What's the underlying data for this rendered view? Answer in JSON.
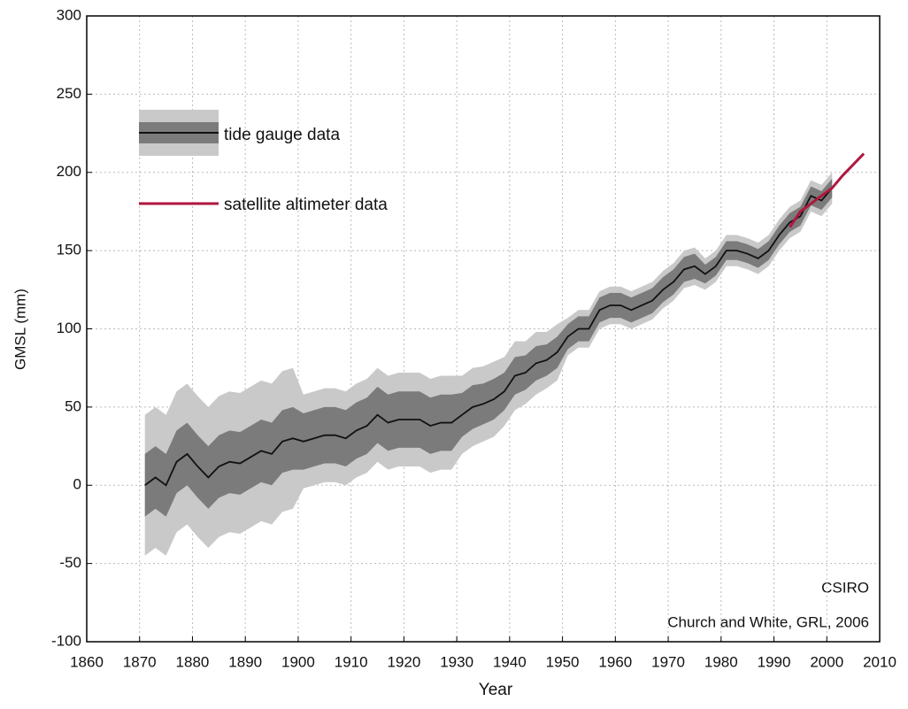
{
  "chart_data": {
    "type": "line",
    "xlabel": "Year",
    "ylabel": "GMSL (mm)",
    "annotations": [
      "CSIRO",
      "Church and White, GRL, 2006"
    ],
    "xlim": [
      1860,
      2010
    ],
    "xticks": [
      1860,
      1870,
      1880,
      1890,
      1900,
      1910,
      1920,
      1930,
      1940,
      1950,
      1960,
      1970,
      1980,
      1990,
      2000,
      2010
    ],
    "ylim": [
      -100,
      300
    ],
    "yticks": [
      -100,
      -50,
      0,
      50,
      100,
      150,
      200,
      250,
      300
    ],
    "grid": true,
    "legend": "upper left",
    "series": [
      {
        "name": "tide gauge data",
        "color": "#111111",
        "band_colors": [
          "#c9c9c9",
          "#7b7b7b"
        ],
        "x": [
          1871,
          1873,
          1875,
          1877,
          1879,
          1881,
          1883,
          1885,
          1887,
          1889,
          1891,
          1893,
          1895,
          1897,
          1899,
          1901,
          1903,
          1905,
          1907,
          1909,
          1911,
          1913,
          1915,
          1917,
          1919,
          1921,
          1923,
          1925,
          1927,
          1929,
          1931,
          1933,
          1935,
          1937,
          1939,
          1941,
          1943,
          1945,
          1947,
          1949,
          1951,
          1953,
          1955,
          1957,
          1959,
          1961,
          1963,
          1965,
          1967,
          1969,
          1971,
          1973,
          1975,
          1977,
          1979,
          1981,
          1983,
          1985,
          1987,
          1989,
          1991,
          1993,
          1995,
          1997,
          1999,
          2001
        ],
        "values": [
          0,
          5,
          0,
          15,
          20,
          12,
          5,
          12,
          15,
          14,
          18,
          22,
          20,
          28,
          30,
          28,
          30,
          32,
          32,
          30,
          35,
          38,
          45,
          40,
          42,
          42,
          42,
          38,
          40,
          40,
          45,
          50,
          52,
          55,
          60,
          70,
          72,
          78,
          80,
          85,
          95,
          100,
          100,
          112,
          115,
          115,
          112,
          115,
          118,
          125,
          130,
          138,
          140,
          135,
          140,
          150,
          150,
          148,
          145,
          150,
          160,
          168,
          172,
          185,
          182,
          190
        ],
        "inner_error": [
          20,
          20,
          20,
          20,
          20,
          20,
          20,
          20,
          20,
          20,
          20,
          20,
          20,
          20,
          20,
          18,
          18,
          18,
          18,
          18,
          18,
          18,
          18,
          18,
          18,
          18,
          18,
          18,
          18,
          18,
          14,
          14,
          13,
          13,
          12,
          12,
          11,
          11,
          10,
          10,
          8,
          8,
          8,
          8,
          8,
          8,
          8,
          8,
          8,
          8,
          8,
          8,
          8,
          6,
          6,
          6,
          6,
          6,
          6,
          6,
          6,
          6,
          6,
          6,
          6,
          6
        ],
        "outer_error": [
          45,
          45,
          45,
          45,
          45,
          45,
          45,
          45,
          45,
          45,
          45,
          45,
          45,
          45,
          45,
          30,
          30,
          30,
          30,
          30,
          30,
          30,
          30,
          30,
          30,
          30,
          30,
          30,
          30,
          30,
          25,
          25,
          24,
          24,
          22,
          22,
          20,
          20,
          18,
          18,
          12,
          12,
          12,
          12,
          12,
          12,
          12,
          12,
          12,
          12,
          12,
          12,
          12,
          10,
          10,
          10,
          10,
          10,
          10,
          10,
          10,
          10,
          10,
          10,
          10,
          10
        ]
      },
      {
        "name": "satellite altimeter data",
        "color": "#b0173f",
        "x": [
          1993,
          1995,
          1997,
          1999,
          2001,
          2003,
          2005,
          2007
        ],
        "values": [
          165,
          175,
          180,
          185,
          190,
          198,
          205,
          212
        ]
      }
    ]
  }
}
